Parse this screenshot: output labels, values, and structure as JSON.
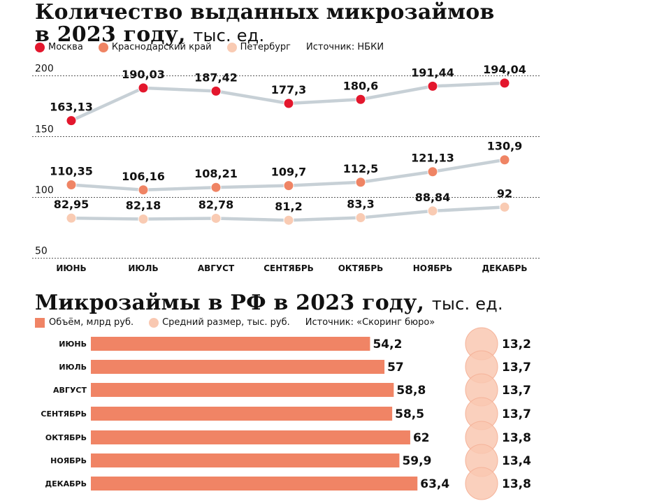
{
  "chart1": {
    "title": "Количество выданных микрозаймов в 2023 году,",
    "title_line1": "Количество выданных микрозаймов",
    "title_line2": "в 2023 году,",
    "unit": "тыс. ед.",
    "source": "Источник: НБКИ",
    "colors": {
      "moscow": "#e3172d",
      "krasnodar": "#ef8464",
      "peter": "#f9cbb3",
      "line": "#c7d0d6",
      "grid": "#555555"
    }
  },
  "chart2": {
    "title": "Микрозаймы в РФ в 2023 году,",
    "unit": "тыс. ед.",
    "legend_volume": "Объём, млрд руб.",
    "legend_avg": "Средний размер, тыс. руб.",
    "source": "Источник: «Скоринг бюро»",
    "colors": {
      "bar": "#f08465",
      "circle": "#f9c8b1",
      "circle_border": "#f5b39a"
    }
  },
  "chart_data": [
    {
      "type": "line",
      "title": "Количество выданных микрозаймов в 2023 году, тыс. ед.",
      "categories": [
        "ИЮНЬ",
        "ИЮЛЬ",
        "АВГУСТ",
        "СЕНТЯБРЬ",
        "ОКТЯБРЬ",
        "НОЯБРЬ",
        "ДЕКАБРЬ"
      ],
      "yticks": [
        "200",
        "150",
        "100",
        "50"
      ],
      "series": [
        {
          "name": "Москва",
          "values": [
            163.13,
            190.03,
            187.42,
            177.3,
            180.6,
            191.44,
            194.04
          ],
          "labels": [
            "163,13",
            "190,03",
            "187,42",
            "177,3",
            "180,6",
            "191,44",
            "194,04"
          ]
        },
        {
          "name": "Краснодарский край",
          "values": [
            110.35,
            106.16,
            108.21,
            109.7,
            112.5,
            121.13,
            130.9
          ],
          "labels": [
            "110,35",
            "106,16",
            "108,21",
            "109,7",
            "112,5",
            "121,13",
            "130,9"
          ]
        },
        {
          "name": "Петербург",
          "values": [
            82.95,
            82.18,
            82.78,
            81.2,
            83.3,
            88.84,
            92
          ],
          "labels": [
            "82,95",
            "82,18",
            "82,78",
            "81,2",
            "83,3",
            "88,84",
            "92"
          ]
        }
      ],
      "grid": true,
      "legend_position": "top-left"
    },
    {
      "type": "bar",
      "title": "Микрозаймы в РФ в 2023 году, тыс. ед.",
      "categories": [
        "ИЮНЬ",
        "ИЮЛЬ",
        "АВГУСТ",
        "СЕНТЯБРЬ",
        "ОКТЯБРЬ",
        "НОЯБРЬ",
        "ДЕКАБРЬ"
      ],
      "series": [
        {
          "name": "Объём, млрд руб.",
          "values": [
            54.2,
            57,
            58.8,
            58.5,
            62,
            59.9,
            63.4
          ],
          "labels": [
            "54,2",
            "57",
            "58,8",
            "58,5",
            "62",
            "59,9",
            "63,4"
          ]
        },
        {
          "name": "Средний размер, тыс. руб.",
          "values": [
            13.2,
            13.7,
            13.7,
            13.7,
            13.8,
            13.4,
            13.8
          ],
          "labels": [
            "13,2",
            "13,7",
            "13,7",
            "13,7",
            "13,8",
            "13,4",
            "13,8"
          ]
        }
      ],
      "orientation": "horizontal"
    }
  ]
}
